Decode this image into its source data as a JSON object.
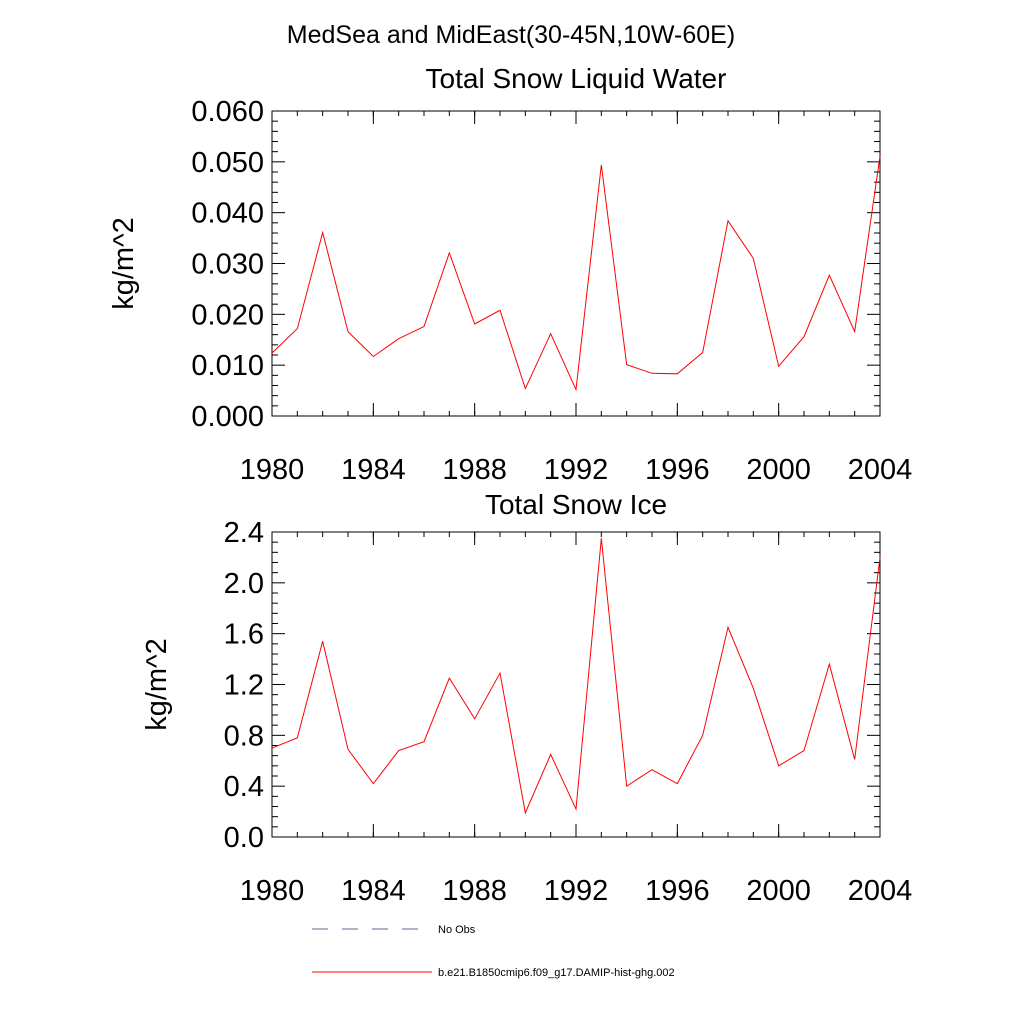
{
  "suptitle": "MedSea and MidEast(30-45N,10W-60E)",
  "chart_data": [
    {
      "type": "line",
      "title": "Total Snow Liquid Water",
      "ylabel": "kg/m^2",
      "xlabel": "",
      "xlim": [
        1980,
        2004
      ],
      "ylim": [
        0.0,
        0.06
      ],
      "xticks": [
        1980,
        1984,
        1988,
        1992,
        1996,
        2000,
        2004
      ],
      "yticks": [
        0.0,
        0.01,
        0.02,
        0.03,
        0.04,
        0.05,
        0.06
      ],
      "ytick_labels": [
        "0.000",
        "0.010",
        "0.020",
        "0.030",
        "0.040",
        "0.050",
        "0.060"
      ],
      "x": [
        1980,
        1981,
        1982,
        1983,
        1984,
        1985,
        1986,
        1987,
        1988,
        1989,
        1990,
        1991,
        1992,
        1993,
        1994,
        1995,
        1996,
        1997,
        1998,
        1999,
        2000,
        2001,
        2002,
        2003,
        2004
      ],
      "series": [
        {
          "name": "b.e21.B1850cmip6.f09_g17.DAMIP-hist-ghg.002",
          "color": "#ff0000",
          "values": [
            0.0124,
            0.0172,
            0.0361,
            0.0166,
            0.0117,
            0.0152,
            0.0176,
            0.0321,
            0.0181,
            0.0208,
            0.0054,
            0.0162,
            0.0052,
            0.0494,
            0.0101,
            0.0084,
            0.0083,
            0.0125,
            0.0384,
            0.031,
            0.0098,
            0.0156,
            0.0277,
            0.0166,
            0.0511
          ]
        }
      ]
    },
    {
      "type": "line",
      "title": "Total Snow Ice",
      "ylabel": "kg/m^2",
      "xlabel": "",
      "xlim": [
        1980,
        2004
      ],
      "ylim": [
        0.0,
        2.4
      ],
      "xticks": [
        1980,
        1984,
        1988,
        1992,
        1996,
        2000,
        2004
      ],
      "yticks": [
        0.0,
        0.4,
        0.8,
        1.2,
        1.6,
        2.0,
        2.4
      ],
      "ytick_labels": [
        "0.0",
        "0.4",
        "0.8",
        "1.2",
        "1.6",
        "2.0",
        "2.4"
      ],
      "x": [
        1980,
        1981,
        1982,
        1983,
        1984,
        1985,
        1986,
        1987,
        1988,
        1989,
        1990,
        1991,
        1992,
        1993,
        1994,
        1995,
        1996,
        1997,
        1998,
        1999,
        2000,
        2001,
        2002,
        2003,
        2004
      ],
      "series": [
        {
          "name": "b.e21.B1850cmip6.f09_g17.DAMIP-hist-ghg.002",
          "color": "#ff0000",
          "values": [
            0.7,
            0.78,
            1.54,
            0.69,
            0.42,
            0.68,
            0.75,
            1.25,
            0.93,
            1.29,
            0.19,
            0.65,
            0.22,
            2.35,
            0.4,
            0.53,
            0.42,
            0.8,
            1.65,
            1.17,
            0.56,
            0.68,
            1.36,
            0.61,
            2.2
          ]
        }
      ]
    }
  ],
  "legend": [
    {
      "label": "No Obs",
      "style": "dashed",
      "color": "#5b6a9e"
    },
    {
      "label": "b.e21.B1850cmip6.f09_g17.DAMIP-hist-ghg.002",
      "style": "solid",
      "color": "#ff0000"
    }
  ]
}
